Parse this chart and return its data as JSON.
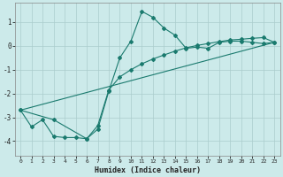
{
  "title": "",
  "xlabel": "Humidex (Indice chaleur)",
  "background_color": "#cceaea",
  "grid_color": "#aacccc",
  "line_color": "#1a7a6e",
  "xlim": [
    -0.5,
    23.5
  ],
  "ylim": [
    -4.6,
    1.8
  ],
  "yticks": [
    -4,
    -3,
    -2,
    -1,
    0,
    1
  ],
  "xticks": [
    0,
    1,
    2,
    3,
    4,
    5,
    6,
    7,
    8,
    9,
    10,
    11,
    12,
    13,
    14,
    15,
    16,
    17,
    18,
    19,
    20,
    21,
    22,
    23
  ],
  "line1_x": [
    0,
    1,
    2,
    3,
    4,
    5,
    6,
    7,
    8,
    9,
    10,
    11,
    12,
    13,
    14,
    15,
    16,
    17,
    18,
    19,
    20,
    21,
    22,
    23
  ],
  "line1_y": [
    -2.7,
    -3.4,
    -3.1,
    -3.8,
    -3.85,
    -3.85,
    -3.9,
    -3.5,
    -1.9,
    -0.5,
    0.2,
    1.45,
    1.2,
    0.75,
    0.45,
    -0.1,
    -0.05,
    -0.1,
    0.15,
    0.2,
    0.2,
    0.15,
    0.1,
    0.15
  ],
  "line2_x": [
    0,
    3,
    6,
    7,
    8,
    9,
    10,
    11,
    12,
    13,
    14,
    15,
    16,
    17,
    18,
    19,
    20,
    21,
    22,
    23
  ],
  "line2_y": [
    -2.7,
    -3.1,
    -3.9,
    -3.35,
    -1.85,
    -1.3,
    -1.0,
    -0.75,
    -0.55,
    -0.38,
    -0.22,
    -0.08,
    0.02,
    0.1,
    0.18,
    0.25,
    0.28,
    0.32,
    0.35,
    0.15
  ],
  "trend_x": [
    0,
    23
  ],
  "trend_y": [
    -2.7,
    0.15
  ]
}
